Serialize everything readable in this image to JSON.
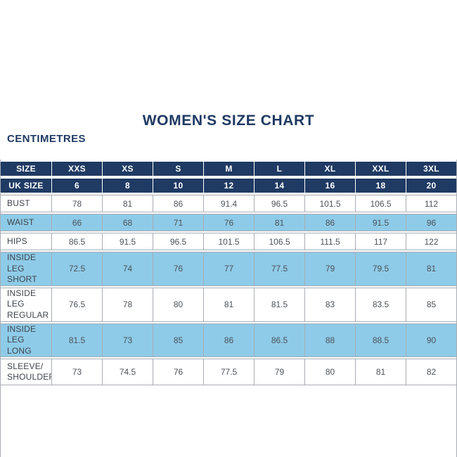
{
  "page": {
    "title": "WOMEN'S SIZE CHART",
    "unit_label": "CENTIMETRES"
  },
  "colors": {
    "navy": "#1f3a63",
    "light_blue": "#8ecbe8",
    "border_gray": "#a9adb3",
    "label_text": "#3f444b",
    "cell_text": "#4d5258",
    "header_text": "#ffffff"
  },
  "table": {
    "header_rows": [
      {
        "label": "SIZE",
        "values": [
          "XXS",
          "XS",
          "S",
          "M",
          "L",
          "XL",
          "XXL",
          "3XL"
        ]
      },
      {
        "label": "UK SIZE",
        "values": [
          "6",
          "8",
          "10",
          "12",
          "14",
          "16",
          "18",
          "20"
        ]
      }
    ],
    "rows": [
      {
        "label_lines": [
          "BUST"
        ],
        "values": [
          "78",
          "81",
          "86",
          "91.4",
          "96.5",
          "101.5",
          "106.5",
          "112"
        ],
        "shaded": false
      },
      {
        "label_lines": [
          "WAIST"
        ],
        "values": [
          "66",
          "68",
          "71",
          "76",
          "81",
          "86",
          "91.5",
          "96"
        ],
        "shaded": true
      },
      {
        "label_lines": [
          "HIPS"
        ],
        "values": [
          "86.5",
          "91.5",
          "96.5",
          "101.5",
          "106.5",
          "111.5",
          "117",
          "122"
        ],
        "shaded": false
      },
      {
        "label_lines": [
          "INSIDE LEG",
          "SHORT"
        ],
        "values": [
          "72.5",
          "74",
          "76",
          "77",
          "77.5",
          "79",
          "79.5",
          "81"
        ],
        "shaded": true
      },
      {
        "label_lines": [
          "INSIDE LEG",
          "REGULAR"
        ],
        "values": [
          "76.5",
          "78",
          "80",
          "81",
          "81.5",
          "83",
          "83.5",
          "85"
        ],
        "shaded": false
      },
      {
        "label_lines": [
          "INSIDE LEG",
          "LONG"
        ],
        "values": [
          "81.5",
          "73",
          "85",
          "86",
          "86.5",
          "88",
          "88.5",
          "90"
        ],
        "shaded": true
      },
      {
        "label_lines": [
          "SLEEVE/",
          "SHOULDER"
        ],
        "values": [
          "73",
          "74.5",
          "76",
          "77.5",
          "79",
          "80",
          "81",
          "82"
        ],
        "shaded": false
      }
    ]
  },
  "chart_data": {
    "type": "table",
    "title": "WOMEN'S SIZE CHART",
    "unit": "CENTIMETRES",
    "columns": [
      "SIZE",
      "XXS",
      "XS",
      "S",
      "M",
      "L",
      "XL",
      "XXL",
      "3XL"
    ],
    "rows": [
      [
        "UK SIZE",
        6,
        8,
        10,
        12,
        14,
        16,
        18,
        20
      ],
      [
        "BUST",
        78,
        81,
        86,
        91.4,
        96.5,
        101.5,
        106.5,
        112
      ],
      [
        "WAIST",
        66,
        68,
        71,
        76,
        81,
        86,
        91.5,
        96
      ],
      [
        "HIPS",
        86.5,
        91.5,
        96.5,
        101.5,
        106.5,
        111.5,
        117,
        122
      ],
      [
        "INSIDE LEG SHORT",
        72.5,
        74,
        76,
        77,
        77.5,
        79,
        79.5,
        81
      ],
      [
        "INSIDE LEG REGULAR",
        76.5,
        78,
        80,
        81,
        81.5,
        83,
        83.5,
        85
      ],
      [
        "INSIDE LEG LONG",
        81.5,
        73,
        85,
        86,
        86.5,
        88,
        88.5,
        90
      ],
      [
        "SLEEVE/SHOULDER",
        73,
        74.5,
        76,
        77.5,
        79,
        80,
        81,
        82
      ]
    ]
  }
}
